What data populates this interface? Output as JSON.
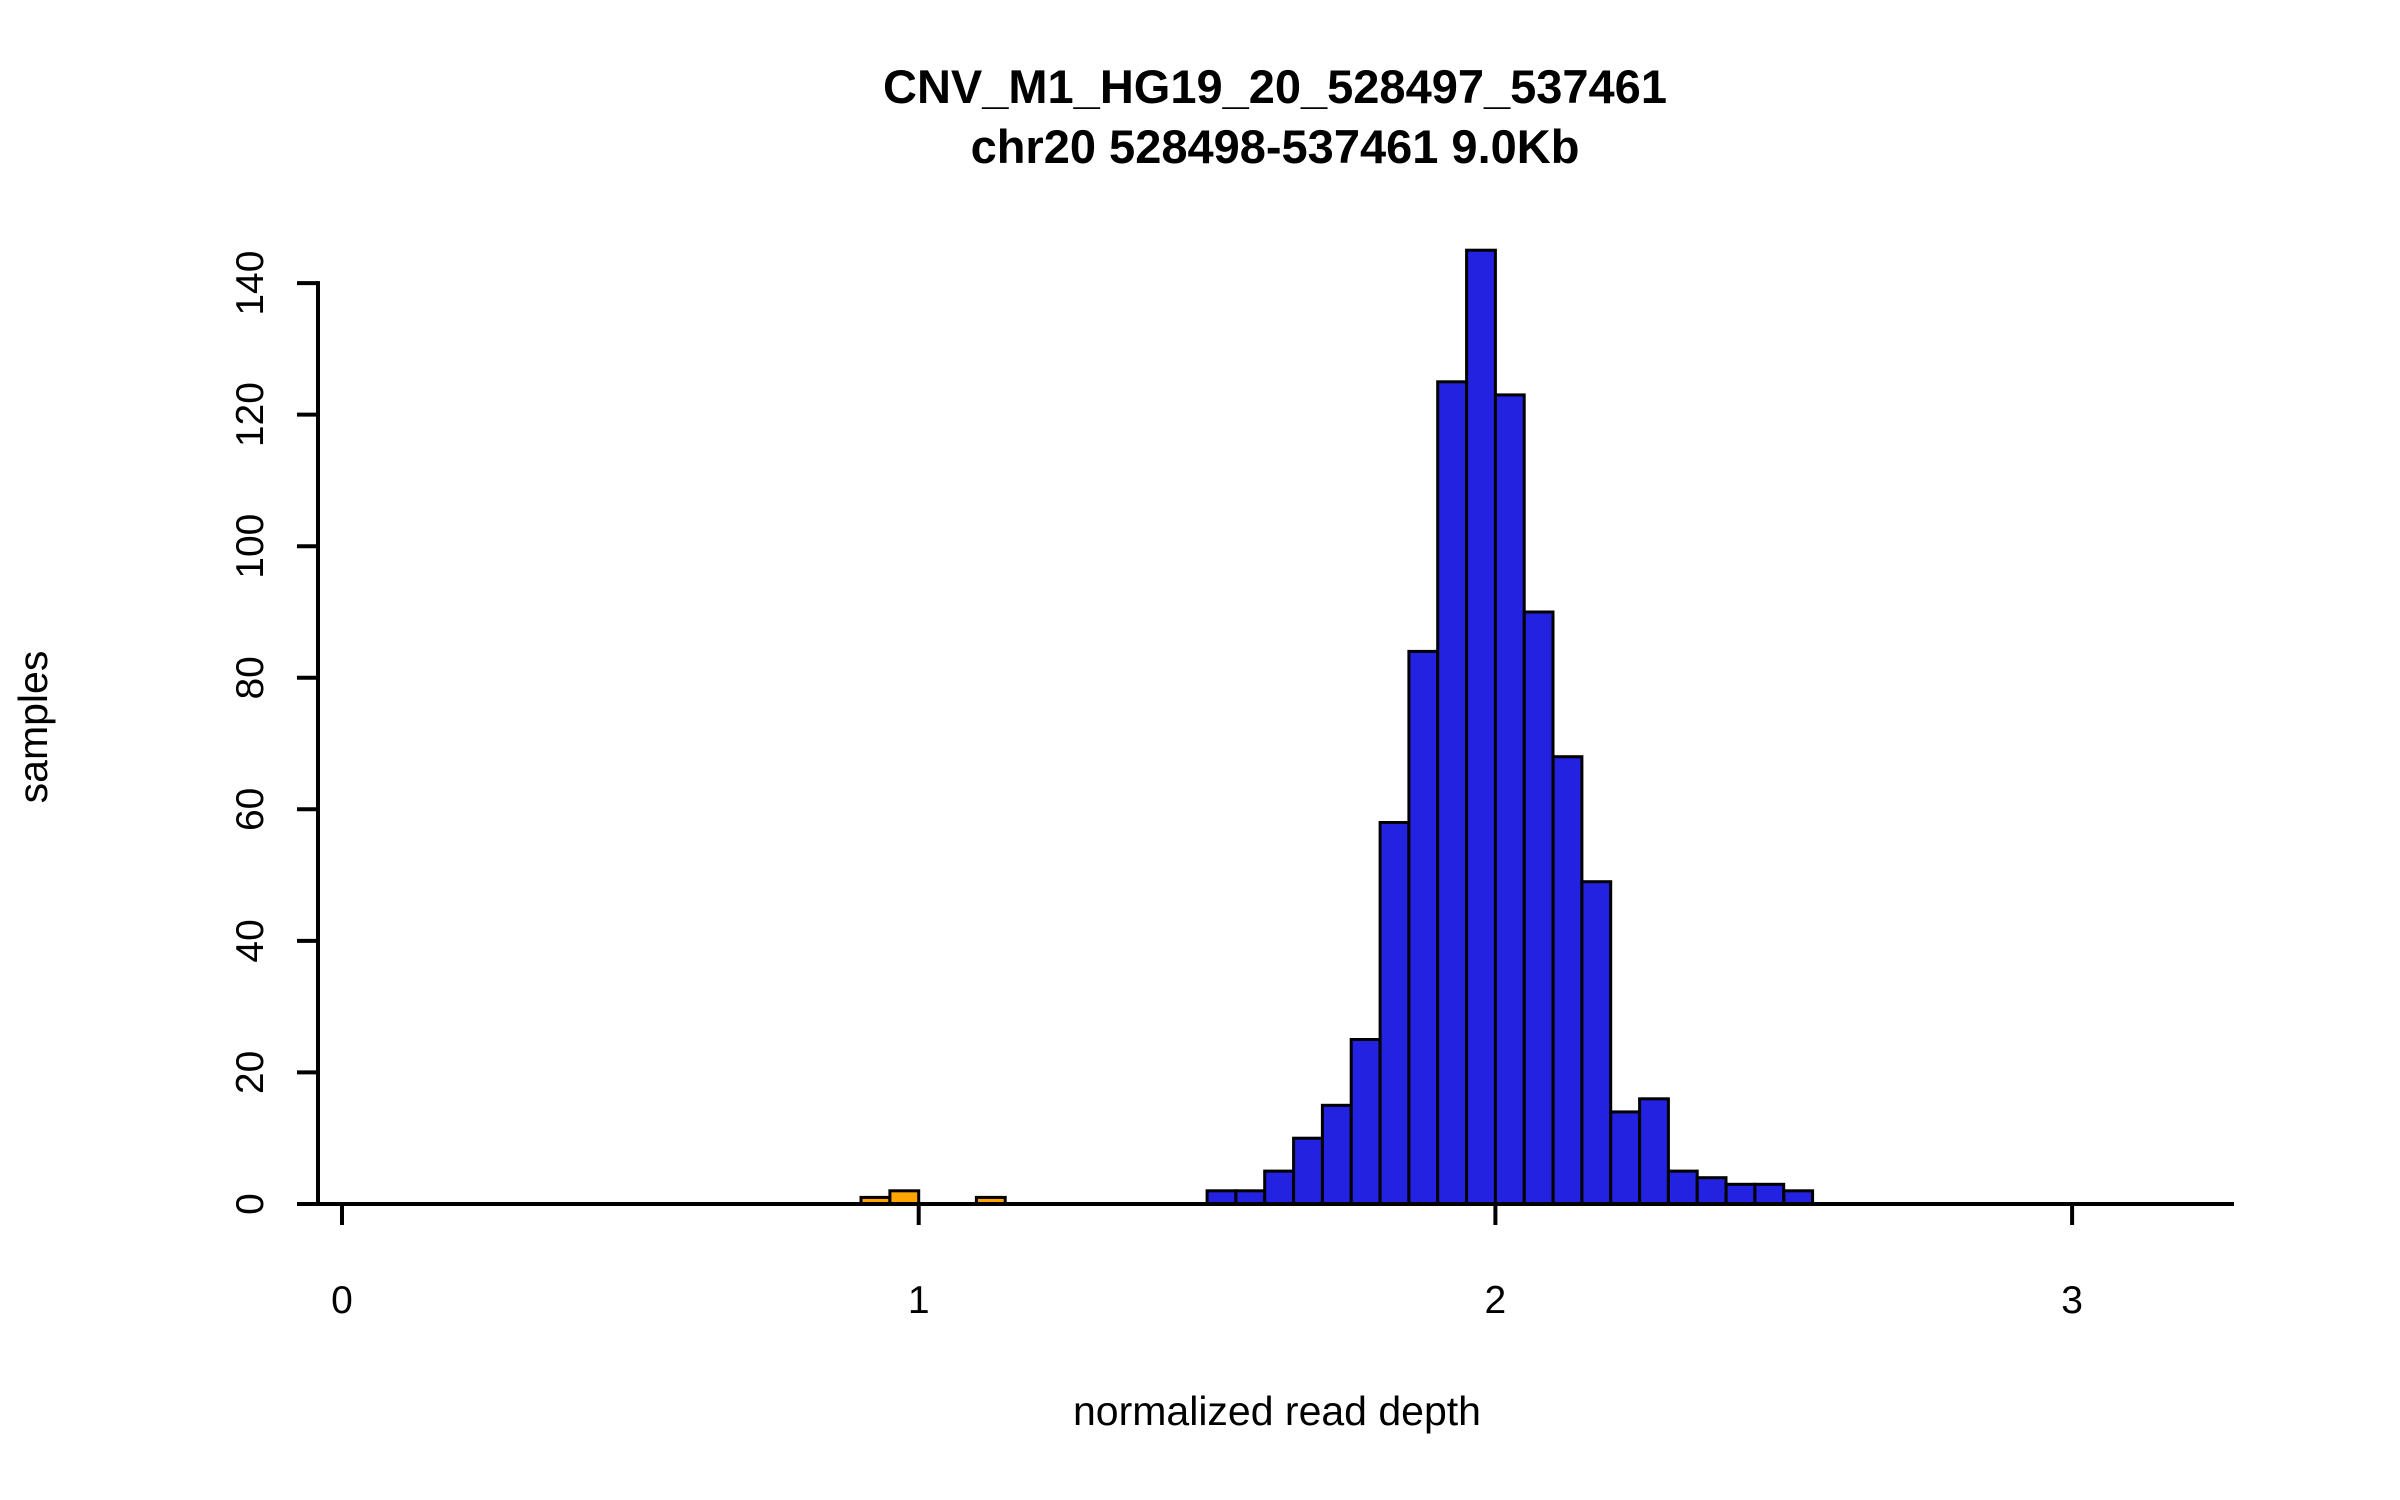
{
  "chart_data": {
    "type": "bar",
    "subtype": "histogram",
    "title": "CNV_M1_HG19_20_528497_537461",
    "subtitle": "chr20 528498-537461 9.0Kb",
    "xlabel": "normalized read depth",
    "ylabel": "samples",
    "xlim": [
      -0.05,
      3.3
    ],
    "ylim": [
      0,
      145
    ],
    "xticks": [
      0,
      1,
      2,
      3
    ],
    "yticks": [
      0,
      20,
      40,
      60,
      80,
      100,
      120,
      140
    ],
    "bin_width": 0.05,
    "grid": false,
    "legend": "none",
    "colors": {
      "main": "#2222E0",
      "outlier": "#FFA500",
      "stroke": "#000000",
      "axis": "#000000"
    },
    "bars": [
      {
        "x": 0.9,
        "h": 1,
        "c": "outlier"
      },
      {
        "x": 0.95,
        "h": 2,
        "c": "outlier"
      },
      {
        "x": 1.1,
        "h": 1,
        "c": "outlier"
      },
      {
        "x": 1.5,
        "h": 2,
        "c": "main"
      },
      {
        "x": 1.55,
        "h": 2,
        "c": "main"
      },
      {
        "x": 1.6,
        "h": 5,
        "c": "main"
      },
      {
        "x": 1.65,
        "h": 10,
        "c": "main"
      },
      {
        "x": 1.7,
        "h": 15,
        "c": "main"
      },
      {
        "x": 1.75,
        "h": 25,
        "c": "main"
      },
      {
        "x": 1.8,
        "h": 58,
        "c": "main"
      },
      {
        "x": 1.85,
        "h": 84,
        "c": "main"
      },
      {
        "x": 1.9,
        "h": 125,
        "c": "main"
      },
      {
        "x": 1.95,
        "h": 145,
        "c": "main"
      },
      {
        "x": 2.0,
        "h": 123,
        "c": "main"
      },
      {
        "x": 2.05,
        "h": 90,
        "c": "main"
      },
      {
        "x": 2.1,
        "h": 68,
        "c": "main"
      },
      {
        "x": 2.15,
        "h": 49,
        "c": "main"
      },
      {
        "x": 2.2,
        "h": 14,
        "c": "main"
      },
      {
        "x": 2.25,
        "h": 16,
        "c": "main"
      },
      {
        "x": 2.3,
        "h": 5,
        "c": "main"
      },
      {
        "x": 2.35,
        "h": 4,
        "c": "main"
      },
      {
        "x": 2.4,
        "h": 3,
        "c": "main"
      },
      {
        "x": 2.45,
        "h": 3,
        "c": "main"
      },
      {
        "x": 2.5,
        "h": 2,
        "c": "main"
      }
    ]
  }
}
